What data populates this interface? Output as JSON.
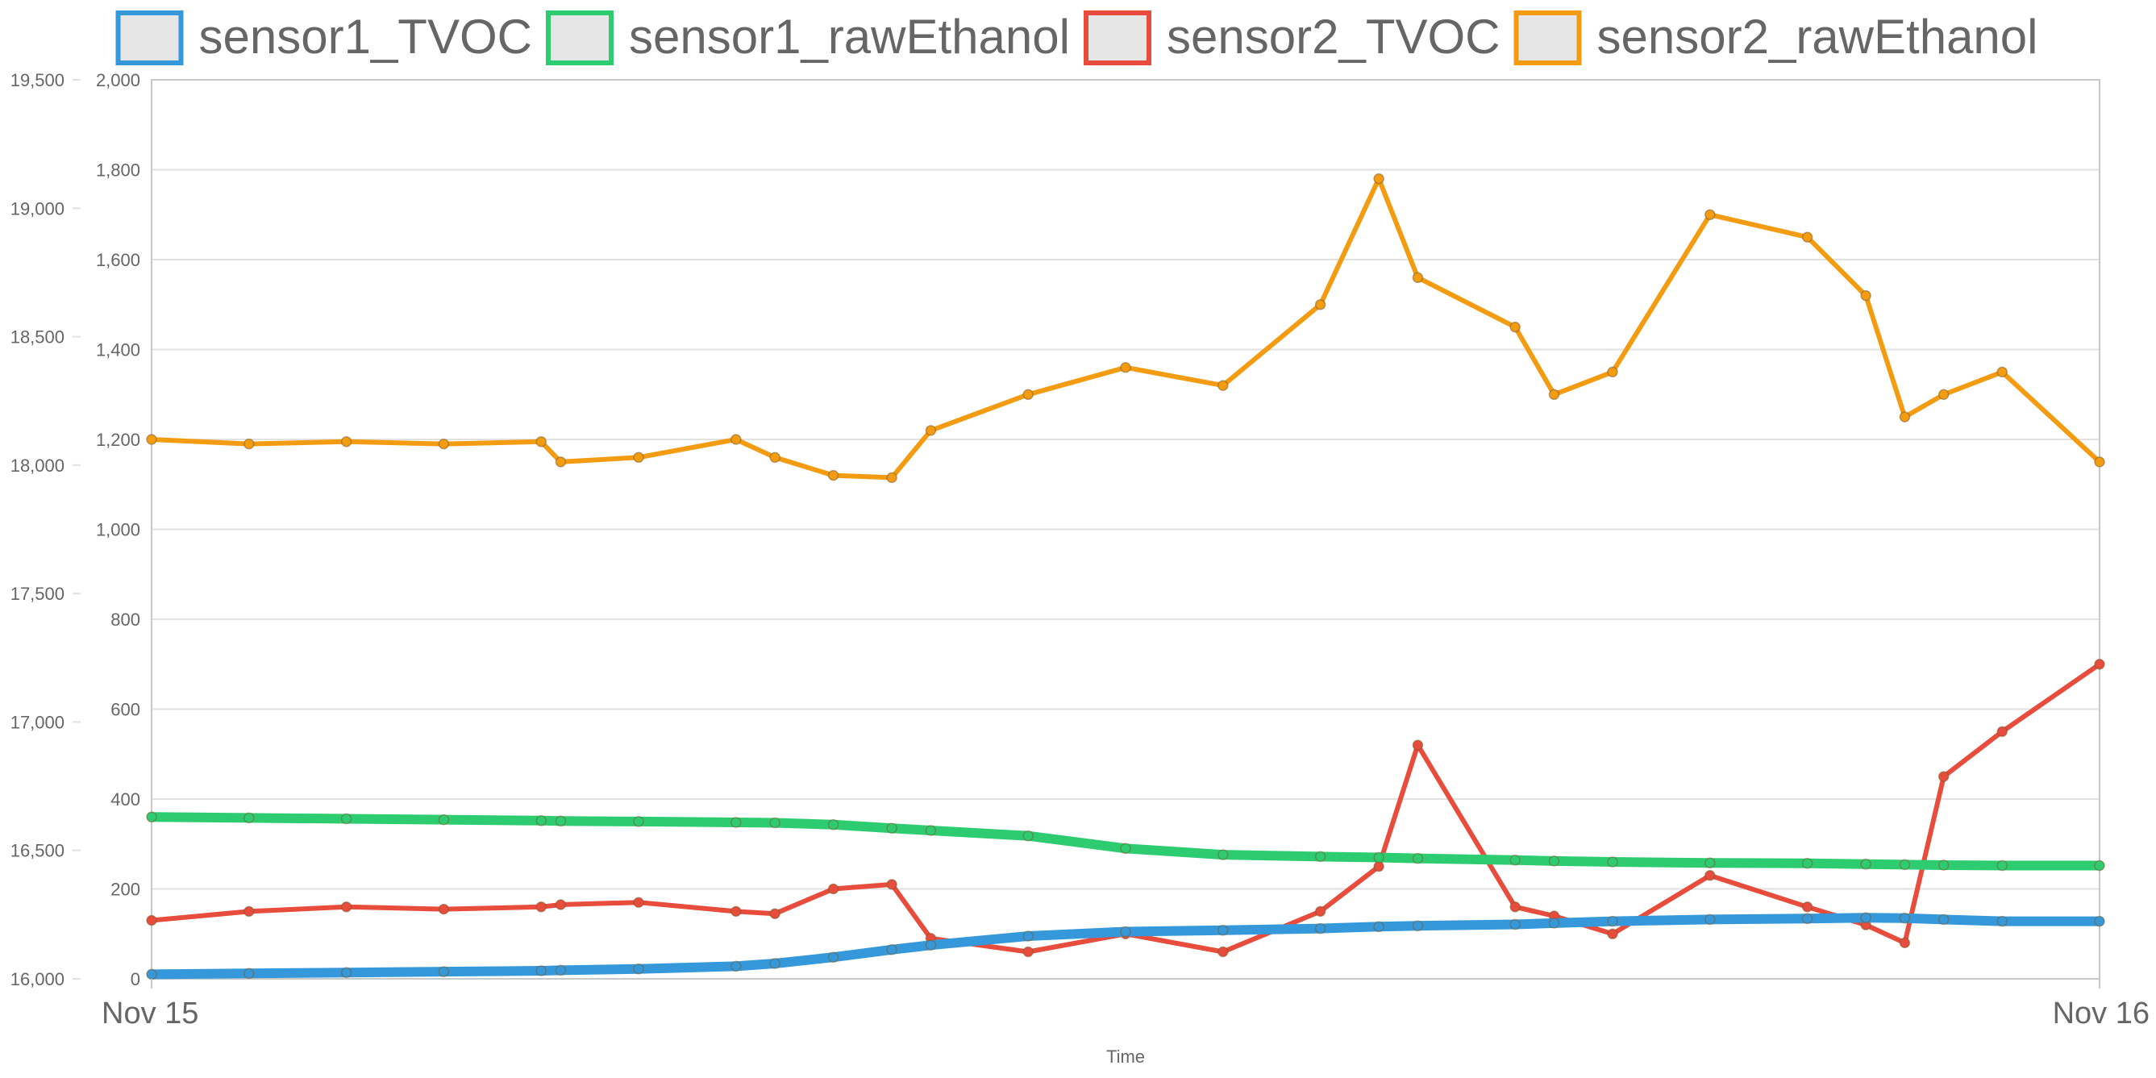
{
  "chart_data": {
    "type": "line",
    "xlabel": "Time",
    "x_ticks": [
      "Nov 15",
      "Nov 16"
    ],
    "x_range": [
      "Nov 15",
      "Nov 16"
    ],
    "grid": true,
    "legend_position": "top",
    "y_left": {
      "ylim": [
        16000,
        19500
      ],
      "ticks": [
        "16,000",
        "16,500",
        "17,000",
        "17,500",
        "18,000",
        "18,500",
        "19,000",
        "19,500"
      ]
    },
    "y_right": {
      "ylim": [
        0,
        2000
      ],
      "ticks": [
        "0",
        "200",
        "400",
        "600",
        "800",
        "1,000",
        "1,200",
        "1,400",
        "1,600",
        "1,800",
        "2,000"
      ]
    },
    "x": [
      0,
      0.05,
      0.1,
      0.15,
      0.2,
      0.21,
      0.25,
      0.3,
      0.32,
      0.35,
      0.38,
      0.4,
      0.45,
      0.5,
      0.55,
      0.6,
      0.63,
      0.65,
      0.7,
      0.72,
      0.75,
      0.8,
      0.85,
      0.88,
      0.9,
      0.92,
      0.95,
      1.0
    ],
    "series": [
      {
        "name": "sensor1_TVOC",
        "color": "#3498db",
        "axis": "right",
        "values": [
          10,
          12,
          14,
          16,
          18,
          19,
          22,
          28,
          34,
          48,
          65,
          75,
          95,
          105,
          108,
          112,
          116,
          118,
          121,
          124,
          128,
          132,
          134,
          136,
          135,
          132,
          128,
          128
        ]
      },
      {
        "name": "sensor1_rawEthanol",
        "color": "#2ecc71",
        "axis": "right",
        "values": [
          360,
          358,
          356,
          354,
          352,
          351,
          350,
          348,
          347,
          343,
          335,
          330,
          318,
          290,
          276,
          272,
          270,
          268,
          264,
          262,
          260,
          258,
          257,
          255,
          254,
          253,
          252,
          252
        ]
      },
      {
        "name": "sensor2_TVOC",
        "color": "#e74c3c",
        "axis": "right",
        "values": [
          130,
          150,
          160,
          155,
          160,
          165,
          170,
          150,
          145,
          200,
          210,
          90,
          60,
          100,
          60,
          150,
          250,
          520,
          160,
          140,
          100,
          230,
          160,
          120,
          80,
          450,
          550,
          700
        ]
      },
      {
        "name": "sensor2_rawEthanol",
        "color": "#f39c12",
        "axis": "right",
        "values": [
          1200,
          1190,
          1195,
          1190,
          1195,
          1150,
          1160,
          1200,
          1160,
          1120,
          1115,
          1220,
          1300,
          1360,
          1320,
          1500,
          1780,
          1560,
          1450,
          1300,
          1350,
          1700,
          1650,
          1520,
          1250,
          1300,
          1350,
          1150
        ]
      }
    ]
  }
}
